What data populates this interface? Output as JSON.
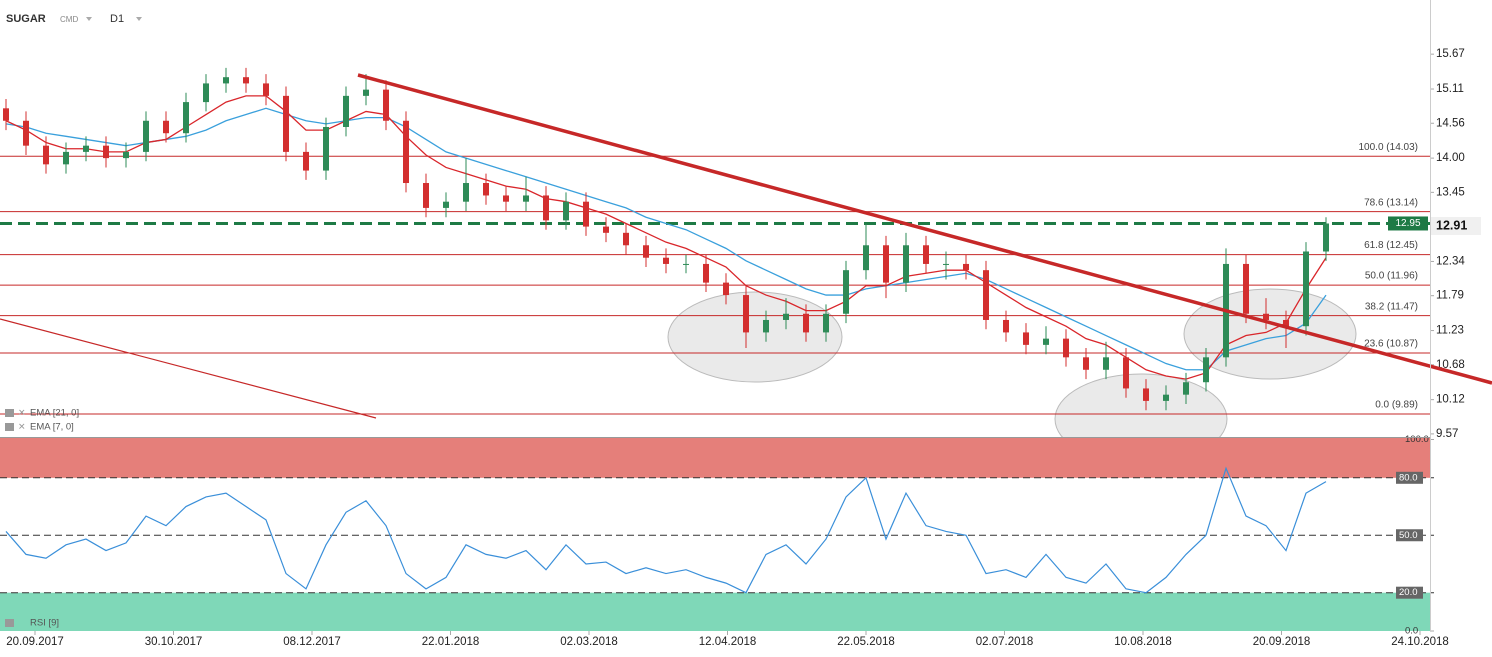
{
  "chart_data": {
    "type": "candlestick",
    "title": "SUGAR",
    "instrument_type": "CMD",
    "timeframe": "D1",
    "x_axis_labels": [
      "20.09.2017",
      "30.10.2017",
      "08.12.2017",
      "22.01.2018",
      "02.03.2018",
      "12.04.2018",
      "22.05.2018",
      "02.07.2018",
      "10.08.2018",
      "20.09.2018",
      "24.10.2018"
    ],
    "ylim": [
      9.52,
      16.54
    ],
    "yticks": [
      15.67,
      15.11,
      14.56,
      {
        "value": 14,
        "label": "14.00"
      },
      13.45,
      12.34,
      11.79,
      11.23,
      10.68,
      10.12,
      9.57
    ],
    "up_color": "#2e8b57",
    "down_color": "#d32f2f",
    "open": [
      14.8,
      14.6,
      14.2,
      13.9,
      14.1,
      14.2,
      14.0,
      14.1,
      14.6,
      14.4,
      14.9,
      15.2,
      15.3,
      15.2,
      15.0,
      14.1,
      13.8,
      14.5,
      15.0,
      15.1,
      14.6,
      13.6,
      13.2,
      13.3,
      13.6,
      13.4,
      13.3,
      13.4,
      13.0,
      13.3,
      12.9,
      12.8,
      12.6,
      12.4,
      12.3,
      12.3,
      12.0,
      11.8,
      11.2,
      11.4,
      11.5,
      11.2,
      11.5,
      12.2,
      12.6,
      12.0,
      12.6,
      12.3,
      12.3,
      12.2,
      11.4,
      11.2,
      11.0,
      11.1,
      10.8,
      10.6,
      10.8,
      10.3,
      10.1,
      10.2,
      10.4,
      10.8,
      12.3,
      11.5,
      11.4,
      11.3,
      12.5
    ],
    "high": [
      14.95,
      14.75,
      14.35,
      14.25,
      14.35,
      14.35,
      14.25,
      14.75,
      14.75,
      15.05,
      15.35,
      15.45,
      15.45,
      15.35,
      15.15,
      14.25,
      14.65,
      15.15,
      15.35,
      15.25,
      14.75,
      13.75,
      13.45,
      14.0,
      13.75,
      13.55,
      13.7,
      13.55,
      13.45,
      13.45,
      13.05,
      12.95,
      12.75,
      12.55,
      12.45,
      12.45,
      12.15,
      11.95,
      11.55,
      11.75,
      11.65,
      11.65,
      12.35,
      12.95,
      12.75,
      12.8,
      12.75,
      12.5,
      12.45,
      12.35,
      11.55,
      11.35,
      11.3,
      11.25,
      10.95,
      11.05,
      10.95,
      10.45,
      10.35,
      10.55,
      10.95,
      12.55,
      12.45,
      11.75,
      11.55,
      12.65,
      13.05
    ],
    "low": [
      14.45,
      14.05,
      13.75,
      13.75,
      13.95,
      13.85,
      13.85,
      13.95,
      14.25,
      14.25,
      14.75,
      15.05,
      15.05,
      14.85,
      13.95,
      13.65,
      13.65,
      14.35,
      14.85,
      14.45,
      13.45,
      13.05,
      13.05,
      13.15,
      13.25,
      13.15,
      13.15,
      12.85,
      12.85,
      12.75,
      12.65,
      12.45,
      12.25,
      12.15,
      12.15,
      11.85,
      11.65,
      10.95,
      11.05,
      11.25,
      11.05,
      11.05,
      11.35,
      12.05,
      11.75,
      11.85,
      12.15,
      12.05,
      12.05,
      11.25,
      11.05,
      10.85,
      10.85,
      10.65,
      10.45,
      10.45,
      10.15,
      9.95,
      9.95,
      10.05,
      10.25,
      10.65,
      11.35,
      11.25,
      10.95,
      11.15,
      12.35
    ],
    "close": [
      14.6,
      14.2,
      13.9,
      14.1,
      14.2,
      14.0,
      14.1,
      14.6,
      14.4,
      14.9,
      15.2,
      15.3,
      15.2,
      15.0,
      14.1,
      13.8,
      14.5,
      15.0,
      15.1,
      14.6,
      13.6,
      13.2,
      13.3,
      13.6,
      13.4,
      13.3,
      13.4,
      13.0,
      13.3,
      12.9,
      12.8,
      12.6,
      12.4,
      12.3,
      12.3,
      12.0,
      11.8,
      11.2,
      11.4,
      11.5,
      11.2,
      11.5,
      12.2,
      12.6,
      12.0,
      12.6,
      12.3,
      12.3,
      12.2,
      11.4,
      11.2,
      11.0,
      11.1,
      10.8,
      10.6,
      10.8,
      10.3,
      10.1,
      10.2,
      10.4,
      10.8,
      12.3,
      11.5,
      11.4,
      11.3,
      12.5,
      12.95
    ],
    "current_price": 12.95,
    "current_price_color": "#1e7a45",
    "last_price": 12.91,
    "series": [
      {
        "name": "EMA [21, 0]",
        "color": "#3aa0dc",
        "values": [
          14.55,
          14.5,
          14.4,
          14.35,
          14.3,
          14.25,
          14.2,
          14.25,
          14.3,
          14.35,
          14.45,
          14.6,
          14.7,
          14.8,
          14.7,
          14.6,
          14.55,
          14.6,
          14.65,
          14.65,
          14.5,
          14.3,
          14.1,
          14.0,
          13.9,
          13.8,
          13.7,
          13.6,
          13.5,
          13.4,
          13.3,
          13.2,
          13.05,
          12.95,
          12.85,
          12.7,
          12.55,
          12.35,
          12.2,
          12.05,
          11.9,
          11.8,
          11.8,
          11.9,
          11.95,
          12.0,
          12.05,
          12.1,
          12.15,
          12.05,
          11.9,
          11.75,
          11.6,
          11.45,
          11.3,
          11.15,
          11.0,
          10.85,
          10.7,
          10.6,
          10.6,
          10.9,
          11.0,
          11.1,
          11.15,
          11.35,
          11.8
        ]
      },
      {
        "name": "EMA [7, 0]",
        "color": "#d9262b",
        "values": [
          14.6,
          14.45,
          14.25,
          14.15,
          14.15,
          14.1,
          14.1,
          14.25,
          14.3,
          14.5,
          14.7,
          14.9,
          15.0,
          15.0,
          14.75,
          14.45,
          14.45,
          14.6,
          14.75,
          14.7,
          14.35,
          14.05,
          13.85,
          13.75,
          13.65,
          13.55,
          13.5,
          13.35,
          13.3,
          13.2,
          13.1,
          12.95,
          12.8,
          12.65,
          12.55,
          12.4,
          12.25,
          11.95,
          11.8,
          11.7,
          11.55,
          11.55,
          11.7,
          11.95,
          11.95,
          12.1,
          12.15,
          12.2,
          12.2,
          12.0,
          11.8,
          11.6,
          11.45,
          11.3,
          11.1,
          11.0,
          10.8,
          10.6,
          10.5,
          10.45,
          10.55,
          11.0,
          11.15,
          11.2,
          11.35,
          11.9,
          12.4
        ]
      }
    ],
    "fibonacci": [
      {
        "label": "100.0 (14.03)",
        "value": 14.03
      },
      {
        "label": "78.6 (13.14)",
        "value": 13.14
      },
      {
        "label": "61.8 (12.45)",
        "value": 12.45
      },
      {
        "label": "50.0 (11.96)",
        "value": 11.96
      },
      {
        "label": "38.2 (11.47)",
        "value": 11.47
      },
      {
        "label": "23.6 (10.87)",
        "value": 10.87
      },
      {
        "label": "0.0 (9.89)",
        "value": 9.89
      }
    ],
    "fibonacci_color": "#c62828",
    "rsi": {
      "name": "RSI [9]",
      "color": "#3a8fd9",
      "ylim": [
        0,
        100
      ],
      "yticks": [
        {
          "value": 100,
          "label": "100.0"
        },
        {
          "value": 80,
          "label": "80.0"
        },
        {
          "value": 50,
          "label": "50.0"
        },
        {
          "value": 20,
          "label": "20.0"
        },
        {
          "value": 0,
          "label": "0.0"
        }
      ],
      "overbought": 80,
      "oversold": 20,
      "values": [
        52,
        40,
        38,
        45,
        48,
        42,
        46,
        60,
        55,
        65,
        70,
        72,
        65,
        58,
        30,
        22,
        45,
        62,
        68,
        55,
        30,
        22,
        28,
        45,
        40,
        38,
        42,
        32,
        45,
        35,
        36,
        30,
        33,
        30,
        32,
        28,
        25,
        20,
        40,
        45,
        35,
        48,
        70,
        80,
        48,
        72,
        55,
        52,
        50,
        30,
        32,
        28,
        40,
        28,
        25,
        35,
        22,
        20,
        28,
        40,
        50,
        85,
        60,
        55,
        42,
        72,
        78
      ]
    }
  }
}
